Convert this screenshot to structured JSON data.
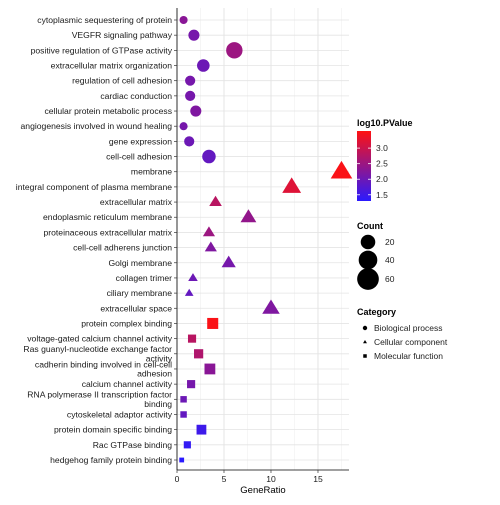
{
  "chart_data": {
    "type": "scatter",
    "xlabel": "GeneRatio",
    "x_ticks": [
      0,
      5,
      10,
      15
    ],
    "xlim": [
      0,
      18.3
    ],
    "grid": true,
    "legend_position": "right",
    "categories": [
      "cytoplasmic sequestering of protein",
      "VEGFR signaling pathway",
      "positive regulation of GTPase activity",
      "extracellular matrix organization",
      "regulation of cell adhesion",
      "cardiac conduction",
      "cellular protein metabolic process",
      "angiogenesis involved in wound healing",
      "gene expression",
      "cell-cell adhesion",
      "membrane",
      "integral component of plasma membrane",
      "extracellular matrix",
      "endoplasmic reticulum membrane",
      "proteinaceous extracellular matrix",
      "cell-cell adherens junction",
      "Golgi membrane",
      "collagen trimer",
      "ciliary membrane",
      "extracellular space",
      "protein complex binding",
      "voltage-gated calcium channel activity",
      "Ras guanyl-nucleotide exchange factor activity",
      "cadherin binding involved in cell-cell adhesion",
      "calcium channel activity",
      "RNA polymerase II transcription factor binding",
      "cytoskeletal adaptor activity",
      "protein domain specific binding",
      "Rac GTPase binding",
      "hedgehog family protein binding"
    ],
    "points": [
      {
        "term": "cytoplasmic sequestering of protein",
        "x": 0.7,
        "count": 4,
        "log10p": 2.3,
        "category": "Biological process"
      },
      {
        "term": "VEGFR signaling pathway",
        "x": 1.8,
        "count": 9,
        "log10p": 2.1,
        "category": "Biological process"
      },
      {
        "term": "positive regulation of GTPase activity",
        "x": 6.1,
        "count": 28,
        "log10p": 2.5,
        "category": "Biological process"
      },
      {
        "term": "extracellular matrix organization",
        "x": 2.8,
        "count": 13,
        "log10p": 2.0,
        "category": "Biological process"
      },
      {
        "term": "regulation of cell adhesion",
        "x": 1.4,
        "count": 7,
        "log10p": 2.1,
        "category": "Biological process"
      },
      {
        "term": "cardiac conduction",
        "x": 1.4,
        "count": 7,
        "log10p": 2.1,
        "category": "Biological process"
      },
      {
        "term": "cellular protein metabolic process",
        "x": 2.0,
        "count": 9,
        "log10p": 2.2,
        "category": "Biological process"
      },
      {
        "term": "angiogenesis involved in wound healing",
        "x": 0.7,
        "count": 4,
        "log10p": 2.1,
        "category": "Biological process"
      },
      {
        "term": "gene expression",
        "x": 1.3,
        "count": 7,
        "log10p": 2.0,
        "category": "Biological process"
      },
      {
        "term": "cell-cell adhesion",
        "x": 3.4,
        "count": 16,
        "log10p": 1.9,
        "category": "Biological process"
      },
      {
        "term": "membrane",
        "x": 17.5,
        "count": 78,
        "log10p": 3.5,
        "category": "Cellular component"
      },
      {
        "term": "integral component of plasma membrane",
        "x": 12.2,
        "count": 55,
        "log10p": 3.2,
        "category": "Cellular component"
      },
      {
        "term": "extracellular matrix",
        "x": 4.1,
        "count": 18,
        "log10p": 2.8,
        "category": "Cellular component"
      },
      {
        "term": "endoplasmic reticulum membrane",
        "x": 7.6,
        "count": 34,
        "log10p": 2.4,
        "category": "Cellular component"
      },
      {
        "term": "proteinaceous extracellular matrix",
        "x": 3.4,
        "count": 16,
        "log10p": 2.5,
        "category": "Cellular component"
      },
      {
        "term": "cell-cell adherens junction",
        "x": 3.6,
        "count": 16,
        "log10p": 2.2,
        "category": "Cellular component"
      },
      {
        "term": "Golgi membrane",
        "x": 5.5,
        "count": 25,
        "log10p": 2.1,
        "category": "Cellular component"
      },
      {
        "term": "collagen trimer",
        "x": 1.7,
        "count": 8,
        "log10p": 2.0,
        "category": "Cellular component"
      },
      {
        "term": "ciliary membrane",
        "x": 1.3,
        "count": 6,
        "log10p": 1.9,
        "category": "Cellular component"
      },
      {
        "term": "extracellular space",
        "x": 10.0,
        "count": 45,
        "log10p": 2.2,
        "category": "Cellular component"
      },
      {
        "term": "protein complex binding",
        "x": 3.8,
        "count": 17,
        "log10p": 3.5,
        "category": "Molecular function"
      },
      {
        "term": "voltage-gated calcium channel activity",
        "x": 1.6,
        "count": 7,
        "log10p": 2.8,
        "category": "Molecular function"
      },
      {
        "term": "Ras guanyl-nucleotide exchange factor activity",
        "x": 2.3,
        "count": 10,
        "log10p": 2.7,
        "category": "Molecular function"
      },
      {
        "term": "cadherin binding involved in cell-cell adhesion",
        "x": 3.5,
        "count": 16,
        "log10p": 2.3,
        "category": "Molecular function"
      },
      {
        "term": "calcium channel activity",
        "x": 1.5,
        "count": 7,
        "log10p": 2.1,
        "category": "Molecular function"
      },
      {
        "term": "RNA polymerase II transcription factor binding",
        "x": 0.7,
        "count": 4,
        "log10p": 2.0,
        "category": "Molecular function"
      },
      {
        "term": "cytoskeletal adaptor activity",
        "x": 0.7,
        "count": 4,
        "log10p": 1.9,
        "category": "Molecular function"
      },
      {
        "term": "protein domain specific binding",
        "x": 2.6,
        "count": 12,
        "log10p": 1.5,
        "category": "Molecular function"
      },
      {
        "term": "Rac GTPase binding",
        "x": 1.1,
        "count": 5,
        "log10p": 1.4,
        "category": "Molecular function"
      },
      {
        "term": "hedgehog family protein binding",
        "x": 0.5,
        "count": 3,
        "log10p": 1.3,
        "category": "Molecular function"
      }
    ],
    "legend_color": {
      "title": "log10.PValue",
      "ticks": [
        1.5,
        2.0,
        2.5,
        3.0
      ],
      "range": [
        1.3,
        3.55
      ],
      "low_color": "#2a1aff",
      "high_color": "#ff1212"
    },
    "legend_size": {
      "title": "Count",
      "values": [
        20,
        40,
        60
      ],
      "count_range": [
        3,
        78
      ]
    },
    "legend_shape": {
      "title": "Category",
      "items": [
        {
          "label": "Biological process",
          "shape": "circle"
        },
        {
          "label": "Cellular component",
          "shape": "triangle"
        },
        {
          "label": "Molecular function",
          "shape": "square"
        }
      ]
    }
  }
}
